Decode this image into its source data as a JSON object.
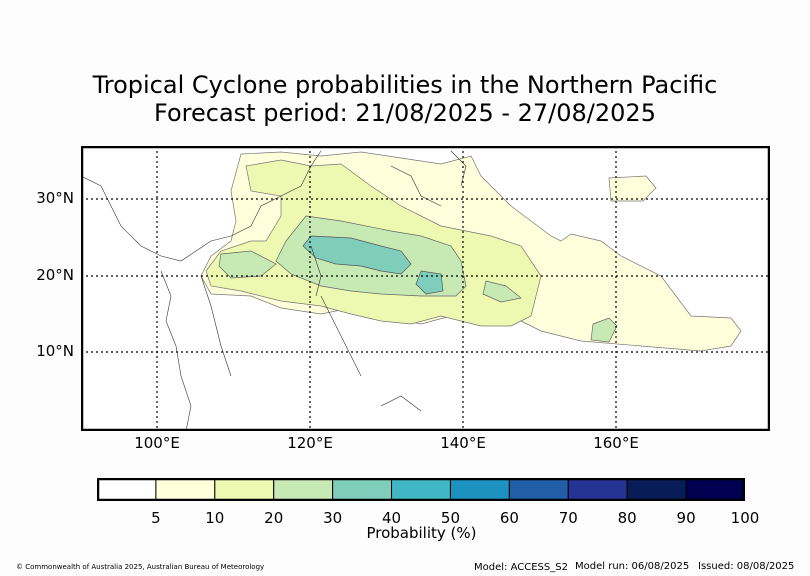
{
  "title": "Tropical Cyclone probabilities in the Northern Pacific",
  "subtitle": "Forecast period: 21/08/2025 - 27/08/2025",
  "map": {
    "lat_labels": [
      "30°N",
      "20°N",
      "10°N"
    ],
    "lon_labels": [
      "100°E",
      "120°E",
      "140°E",
      "160°E"
    ]
  },
  "colorbar": {
    "label": "Probability (%)",
    "ticks": [
      "5",
      "10",
      "20",
      "30",
      "40",
      "50",
      "60",
      "70",
      "80",
      "90",
      "100"
    ],
    "colors": [
      "#ffffff",
      "#ffffdc",
      "#edf8b1",
      "#c7e9b4",
      "#7fcdbb",
      "#41b6c4",
      "#1d91c0",
      "#225ea8",
      "#253494",
      "#081d58",
      "#000050"
    ]
  },
  "footer": {
    "copyright": "© Commonwealth of Australia 2025, Australian Bureau of Meteorology",
    "model": "Model: ACCESS_S2",
    "model_run": "Model run: 06/08/2025",
    "issued": "Issued: 08/08/2025"
  },
  "chart_data": {
    "type": "heatmap",
    "title": "Tropical Cyclone probabilities in the Northern Pacific",
    "subtitle": "Forecast period: 21/08/2025 - 27/08/2025",
    "xlabel": "",
    "ylabel": "",
    "xlim": [
      90,
      180
    ],
    "ylim": [
      0,
      37
    ],
    "x_ticks": [
      "100°E",
      "120°E",
      "140°E",
      "160°E"
    ],
    "y_ticks": [
      "10°N",
      "20°N",
      "30°N"
    ],
    "grid": true,
    "colorbar_label": "Probability (%)",
    "levels": [
      5,
      10,
      20,
      30,
      40,
      50,
      60,
      70,
      80,
      90,
      100
    ]
  }
}
